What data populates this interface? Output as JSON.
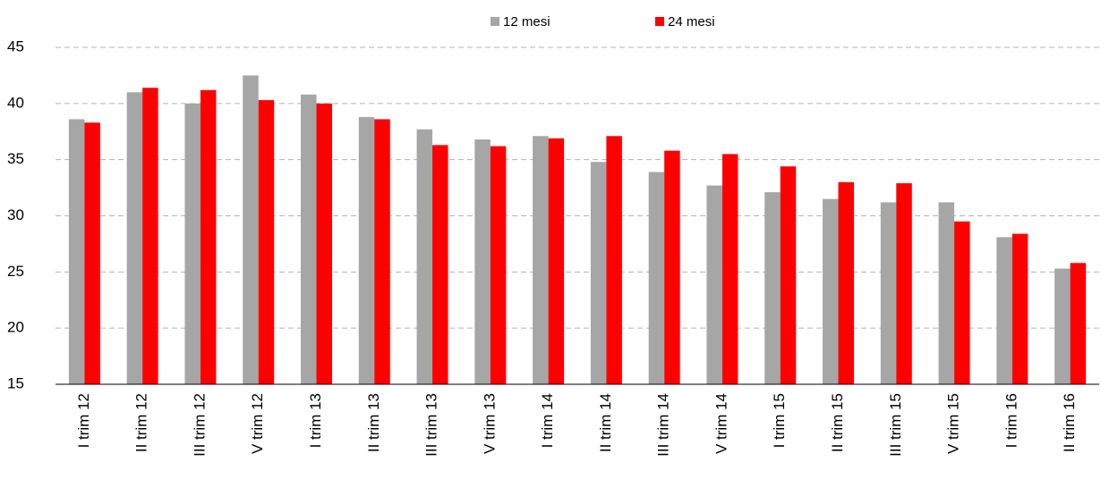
{
  "chart_data": {
    "type": "bar",
    "categories": [
      "I trim 12",
      "II trim 12",
      "III trim 12",
      "V trim 12",
      "I trim 13",
      "II trim 13",
      "III trim 13",
      "V trim 13",
      "I trim 14",
      "II trim 14",
      "III trim 14",
      "V trim 14",
      "I trim 15",
      "II trim 15",
      "III trim 15",
      "V trim 15",
      "I trim 16",
      "II trim 16"
    ],
    "series": [
      {
        "name": "12 mesi",
        "color": "#a6a6a6",
        "values": [
          38.6,
          41.0,
          40.0,
          42.5,
          40.8,
          38.8,
          37.7,
          36.8,
          37.1,
          34.8,
          33.9,
          32.7,
          32.1,
          31.5,
          31.2,
          31.2,
          28.1,
          25.3
        ]
      },
      {
        "name": "24 mesi",
        "color": "#ff0000",
        "values": [
          38.3,
          41.4,
          41.2,
          40.3,
          40.0,
          38.6,
          36.3,
          36.2,
          36.9,
          37.1,
          35.8,
          35.5,
          34.4,
          33.0,
          32.9,
          29.5,
          28.4,
          25.8
        ]
      }
    ],
    "ylim": [
      15,
      45
    ],
    "yticks": [
      15,
      20,
      25,
      30,
      35,
      40,
      45
    ],
    "grid": true
  }
}
